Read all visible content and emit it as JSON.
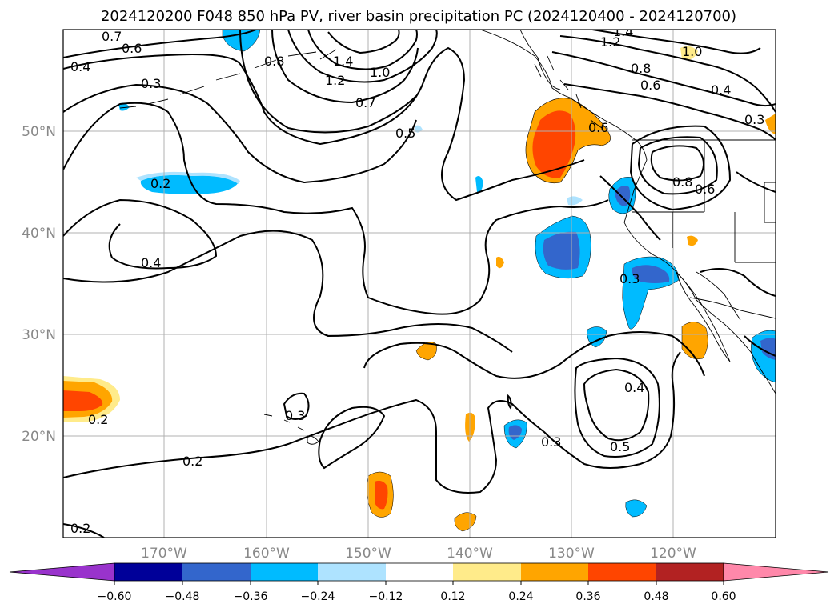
{
  "title": "2024120200 F048 850 hPa PV, river basin precipitation PC (2024120400 - 2024120700)",
  "map": {
    "lon_labels": [
      "170°W",
      "160°W",
      "150°W",
      "140°W",
      "130°W",
      "120°W"
    ],
    "lat_labels": [
      "50°N",
      "40°N",
      "30°N",
      "20°N"
    ],
    "contour_labels": [
      "0.7",
      "0.6",
      "0.4",
      "0.3",
      "0.8",
      "1.4",
      "1.2",
      "1.0",
      "0.7",
      "0.5",
      "1.4",
      "1.2",
      "1.0",
      "0.8",
      "0.6",
      "0.4",
      "0.3",
      "0.8",
      "0.6",
      "0.2",
      "0.4",
      "0.3",
      "0.3",
      "0.2",
      "0.3",
      "0.4",
      "0.5",
      "0.2",
      "0.2",
      "0.6"
    ]
  },
  "colorbar": {
    "ticks": [
      "−0.60",
      "−0.48",
      "−0.36",
      "−0.24",
      "−0.12",
      "0.12",
      "0.24",
      "0.36",
      "0.48",
      "0.60"
    ],
    "colors": {
      "under": "#9933cc",
      "neg_060": "#000099",
      "neg_048": "#3366cc",
      "neg_036": "#00bbff",
      "neg_024": "#aee3ff",
      "neutral": "#ffffff",
      "pos_012": "#ffeb8a",
      "pos_024": "#ffa500",
      "pos_036": "#ff4500",
      "pos_048": "#b22222",
      "over": "#ff88aa"
    }
  }
}
